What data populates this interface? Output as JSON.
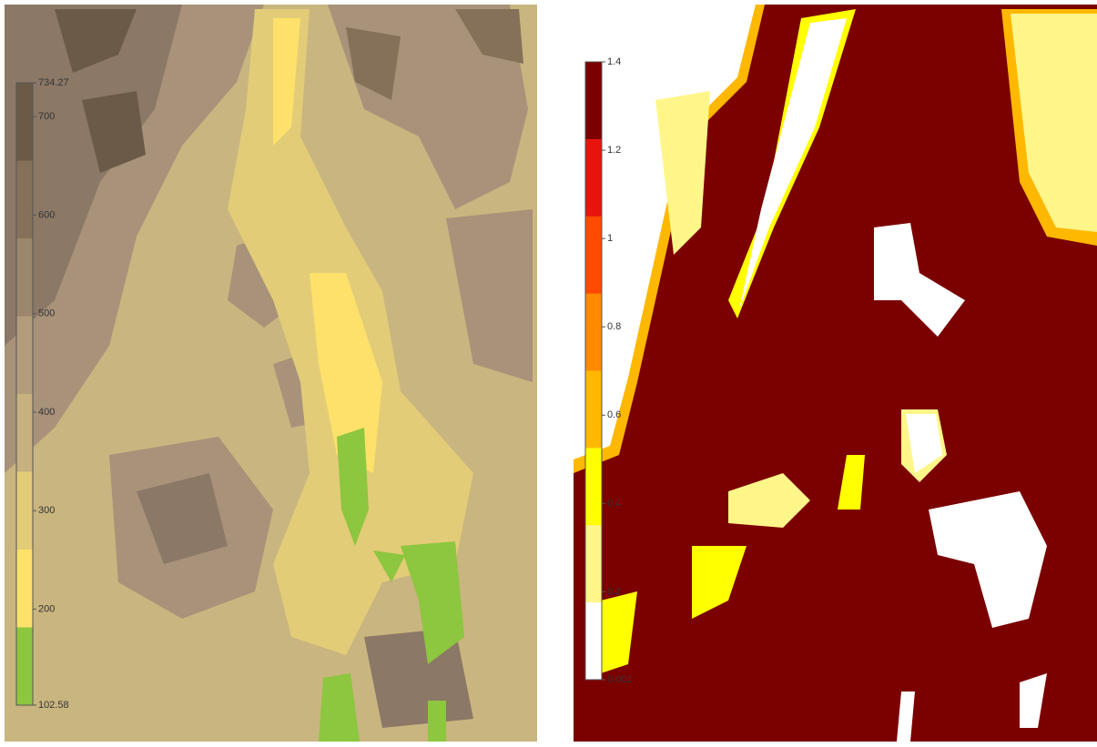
{
  "left_map": {
    "colorbar": {
      "ticks": [
        734.27,
        700,
        600,
        500,
        400,
        300,
        200,
        102.58
      ],
      "colors": [
        "#6b5a47",
        "#857159",
        "#9c876c",
        "#b29d7b",
        "#c6b17f",
        "#e3cc78",
        "#fde16a",
        "#8dc63f"
      ]
    }
  },
  "right_map": {
    "colorbar": {
      "ticks": [
        1.4,
        1.2,
        1,
        0.8,
        0.6,
        0.4,
        0.2,
        0.001
      ],
      "colors": [
        "#7b0000",
        "#e8140c",
        "#ff4a00",
        "#ff8a00",
        "#ffb800",
        "#ffff00",
        "#fff68a",
        "#ffffff"
      ]
    }
  }
}
